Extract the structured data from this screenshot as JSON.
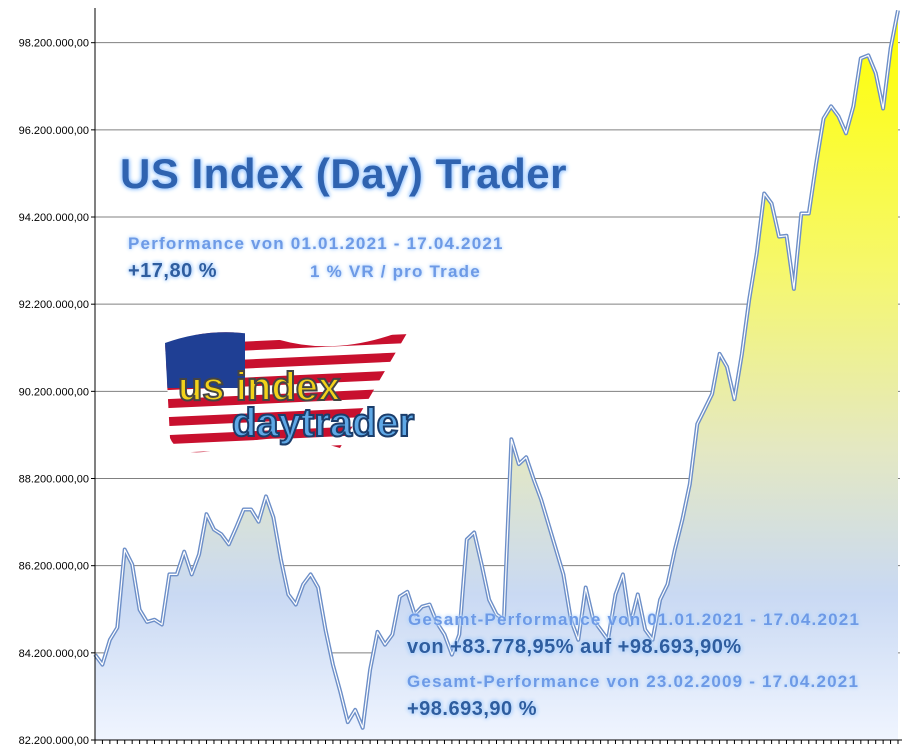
{
  "chart_data": {
    "type": "area",
    "title": "US Index (Day) Trader",
    "xlabel": "",
    "ylabel": "",
    "ylim": [
      82200000,
      98950000
    ],
    "yticks": [
      82200000,
      84200000,
      86200000,
      88200000,
      90200000,
      92200000,
      94200000,
      96200000,
      98200000
    ],
    "ytick_labels": [
      "82.200.000,00",
      "84.200.000,00",
      "86.200.000,00",
      "88.200.000,00",
      "90.200.000,00",
      "92.200.000,00",
      "94.200.000,00",
      "96.200.000,00",
      "98.200.000,00"
    ],
    "grid": "horizontal",
    "values_millions": [
      84.16,
      83.93,
      84.5,
      84.78,
      86.57,
      86.23,
      85.19,
      84.91,
      84.96,
      84.85,
      86.0,
      86.0,
      86.52,
      86.0,
      86.46,
      87.38,
      87.03,
      86.92,
      86.69,
      87.08,
      87.49,
      87.49,
      87.21,
      87.79,
      87.31,
      86.34,
      85.54,
      85.31,
      85.77,
      86.0,
      85.7,
      84.73,
      83.93,
      83.3,
      82.61,
      82.89,
      82.48,
      83.81,
      84.68,
      84.39,
      84.62,
      85.49,
      85.6,
      85.08,
      85.26,
      85.31,
      84.89,
      84.62,
      84.16,
      84.62,
      86.8,
      86.96,
      86.23,
      85.42,
      85.08,
      84.96,
      89.1,
      88.53,
      88.69,
      88.18,
      87.72,
      87.15,
      86.57,
      86.0,
      84.96,
      84.5,
      85.7,
      84.96,
      84.73,
      84.5,
      85.54,
      86.0,
      84.85,
      85.54,
      84.73,
      84.5,
      85.42,
      85.77,
      86.57,
      87.26,
      88.07,
      89.45,
      89.79,
      90.14,
      91.06,
      90.76,
      90.02,
      91.06,
      92.32,
      93.36,
      94.74,
      94.51,
      93.75,
      93.77,
      92.55,
      94.28,
      94.28,
      95.43,
      96.46,
      96.74,
      96.51,
      96.12,
      96.74,
      97.84,
      97.91,
      97.5,
      96.69,
      98.07,
      98.94
    ],
    "colors": {
      "line": "#6d8fc8",
      "fill_top": "#ffff00",
      "fill_mid": "#e6ebc0",
      "fill_bottom": "#eef4ff",
      "grid": "#808080"
    }
  },
  "overlay": {
    "title": "US Index (Day) Trader",
    "perf_line": "Performance  von  01.01.2021 - 17.04.2021",
    "perf_value": "+17,80 %",
    "risk": "1 % VR / pro Trade",
    "total1_line": "Gesamt-Performance  von  01.01.2021 - 17.04.2021",
    "total1_value": "von +83.778,95% auf  +98.693,90%",
    "total2_line": "Gesamt-Performance  von  23.02.2009 - 17.04.2021",
    "total2_value": "+98.693,90 %"
  },
  "logo": {
    "text_top": "us index",
    "text_bottom": "daytrader"
  }
}
